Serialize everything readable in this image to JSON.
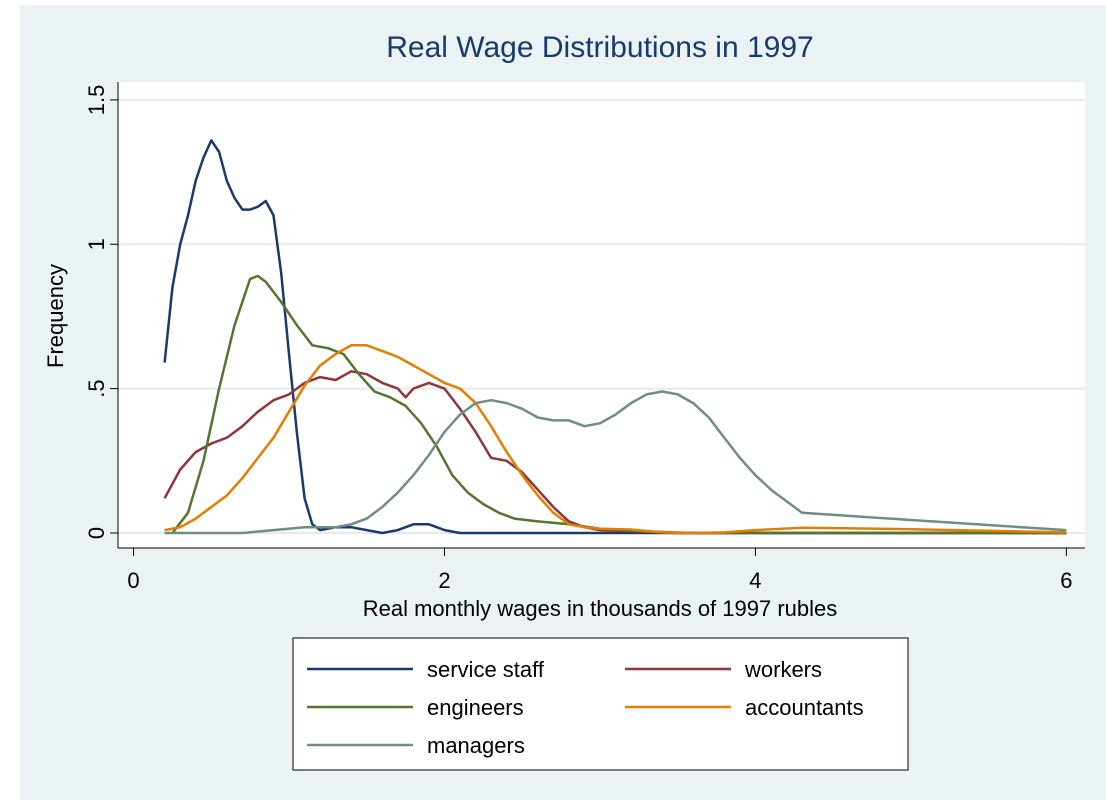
{
  "chart_data": {
    "type": "line",
    "title": "Real Wage Distributions in 1997",
    "x_label": "Real monthly wages in thousands of 1997 rubles",
    "y_label": "Frequency",
    "xlim": [
      -0.1,
      6.12
    ],
    "ylim": [
      -0.052,
      1.562
    ],
    "xticks": [
      0,
      2,
      4,
      6
    ],
    "yticks": [
      0,
      {
        "value": 0.5,
        "label": ".5"
      },
      1,
      1.5
    ],
    "grid": true,
    "legend": "bottom",
    "legend_columns": 2,
    "series": [
      {
        "name": "service staff",
        "color": "#1a3a6b",
        "x": [
          0.2,
          0.25,
          0.3,
          0.35,
          0.4,
          0.45,
          0.5,
          0.55,
          0.6,
          0.65,
          0.7,
          0.75,
          0.8,
          0.85,
          0.9,
          0.95,
          1.0,
          1.05,
          1.1,
          1.15,
          1.2,
          1.3,
          1.4,
          1.5,
          1.6,
          1.7,
          1.8,
          1.9,
          2.0,
          2.1,
          3,
          6
        ],
        "values": [
          0.59,
          0.85,
          1.0,
          1.1,
          1.22,
          1.3,
          1.36,
          1.32,
          1.22,
          1.16,
          1.12,
          1.12,
          1.13,
          1.15,
          1.1,
          0.9,
          0.62,
          0.35,
          0.12,
          0.03,
          0.01,
          0.02,
          0.02,
          0.01,
          0.0,
          0.01,
          0.03,
          0.03,
          0.01,
          0.0,
          0,
          0
        ]
      },
      {
        "name": "workers",
        "color": "#90353b",
        "x": [
          0.2,
          0.3,
          0.4,
          0.5,
          0.6,
          0.7,
          0.8,
          0.9,
          1.0,
          1.1,
          1.2,
          1.3,
          1.4,
          1.5,
          1.6,
          1.7,
          1.75,
          1.8,
          1.9,
          2.0,
          2.1,
          2.2,
          2.3,
          2.4,
          2.5,
          2.6,
          2.7,
          2.8,
          2.9,
          3.0,
          3.5,
          6
        ],
        "values": [
          0.12,
          0.22,
          0.28,
          0.31,
          0.33,
          0.37,
          0.42,
          0.46,
          0.48,
          0.52,
          0.54,
          0.53,
          0.56,
          0.55,
          0.52,
          0.5,
          0.47,
          0.5,
          0.52,
          0.5,
          0.43,
          0.35,
          0.26,
          0.25,
          0.21,
          0.15,
          0.09,
          0.04,
          0.02,
          0.01,
          0.0,
          0
        ]
      },
      {
        "name": "engineers",
        "color": "#55752f",
        "x": [
          0.25,
          0.35,
          0.45,
          0.55,
          0.65,
          0.75,
          0.8,
          0.85,
          0.95,
          1.05,
          1.15,
          1.25,
          1.35,
          1.45,
          1.55,
          1.65,
          1.75,
          1.85,
          1.95,
          2.05,
          2.15,
          2.25,
          2.35,
          2.45,
          2.6,
          2.8,
          3.0,
          3.3,
          3.6,
          6
        ],
        "values": [
          0.0,
          0.07,
          0.25,
          0.5,
          0.72,
          0.88,
          0.89,
          0.87,
          0.8,
          0.72,
          0.65,
          0.64,
          0.62,
          0.55,
          0.49,
          0.47,
          0.44,
          0.38,
          0.3,
          0.2,
          0.14,
          0.1,
          0.07,
          0.05,
          0.04,
          0.03,
          0.015,
          0.005,
          0,
          0
        ]
      },
      {
        "name": "accountants",
        "color": "#e37e00",
        "x": [
          0.2,
          0.3,
          0.4,
          0.5,
          0.6,
          0.7,
          0.8,
          0.9,
          1.0,
          1.1,
          1.2,
          1.3,
          1.4,
          1.5,
          1.6,
          1.7,
          1.8,
          1.9,
          2.0,
          2.1,
          2.2,
          2.3,
          2.4,
          2.5,
          2.6,
          2.7,
          2.8,
          2.9,
          3.0,
          3.2,
          3.4,
          3.6,
          3.8,
          4.0,
          4.3,
          5.0,
          6.0
        ],
        "values": [
          0.01,
          0.02,
          0.05,
          0.09,
          0.13,
          0.19,
          0.26,
          0.33,
          0.42,
          0.51,
          0.58,
          0.62,
          0.65,
          0.65,
          0.63,
          0.61,
          0.58,
          0.55,
          0.52,
          0.5,
          0.45,
          0.37,
          0.28,
          0.2,
          0.13,
          0.07,
          0.03,
          0.02,
          0.015,
          0.012,
          0.002,
          0.0,
          0.002,
          0.01,
          0.018,
          0.013,
          0.002
        ]
      },
      {
        "name": "managers",
        "color": "#6e8e84",
        "x": [
          0.2,
          0.7,
          0.9,
          1.1,
          1.3,
          1.4,
          1.5,
          1.6,
          1.7,
          1.8,
          1.9,
          2.0,
          2.1,
          2.2,
          2.3,
          2.4,
          2.5,
          2.6,
          2.7,
          2.8,
          2.9,
          3.0,
          3.1,
          3.2,
          3.3,
          3.4,
          3.5,
          3.6,
          3.7,
          3.8,
          3.9,
          4.0,
          4.1,
          4.2,
          4.3,
          5.0,
          6.0
        ],
        "values": [
          0.0,
          0.0,
          0.01,
          0.02,
          0.02,
          0.03,
          0.05,
          0.09,
          0.14,
          0.2,
          0.27,
          0.35,
          0.41,
          0.45,
          0.46,
          0.45,
          0.43,
          0.4,
          0.39,
          0.39,
          0.37,
          0.38,
          0.41,
          0.45,
          0.48,
          0.49,
          0.48,
          0.45,
          0.4,
          0.33,
          0.26,
          0.2,
          0.15,
          0.11,
          0.07,
          0.045,
          0.01
        ]
      }
    ]
  }
}
